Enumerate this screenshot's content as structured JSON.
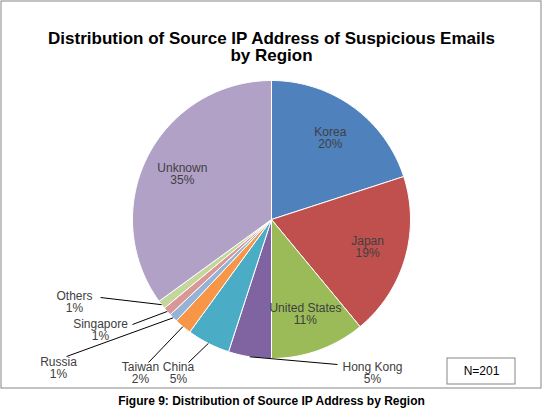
{
  "chart_data": {
    "type": "pie",
    "title": "Distribution of Source IP Address of Suspicious Emails by Region",
    "categories": [
      "Korea",
      "Japan",
      "United States",
      "Hong Kong",
      "China",
      "Taiwan",
      "Russia",
      "Singapore",
      "Others",
      "Unknown"
    ],
    "values": [
      20,
      19,
      11,
      5,
      5,
      2,
      1,
      1,
      1,
      35
    ],
    "value_labels": [
      "20%",
      "19%",
      "11%",
      "5%",
      "5%",
      "2%",
      "1%",
      "1%",
      "1%",
      "35%"
    ],
    "colors": [
      "#4f81bd",
      "#c0504d",
      "#9bbb59",
      "#8064a2",
      "#4bacc6",
      "#f79646",
      "#95b3d7",
      "#d99795",
      "#c3d69b",
      "#b2a1c7"
    ],
    "data_labels": true,
    "annotations": [
      "N=201"
    ],
    "caption": "Figure 9: Distribution of Source IP Address by Region"
  }
}
